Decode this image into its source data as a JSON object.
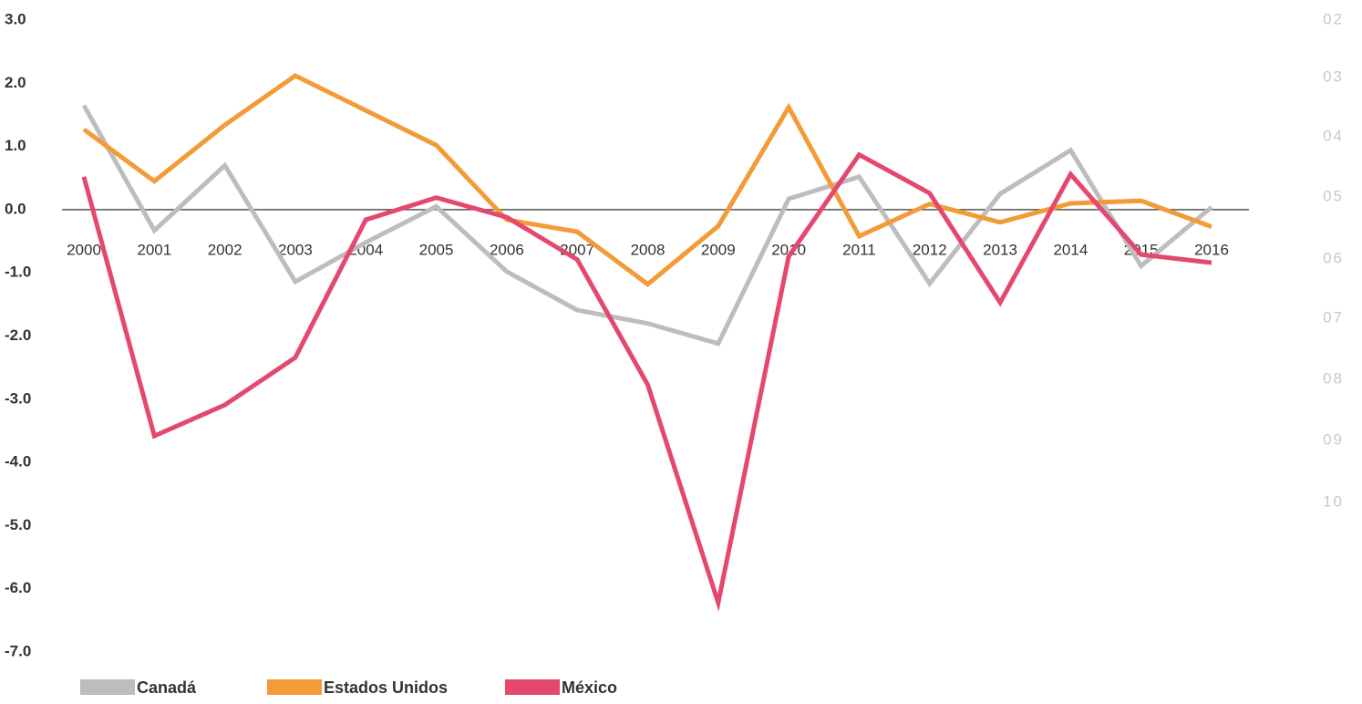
{
  "chart_data": {
    "type": "line",
    "categories": [
      "2000",
      "2001",
      "2002",
      "2003",
      "2004",
      "2005",
      "2006",
      "2007",
      "2008",
      "2009",
      "2010",
      "2011",
      "2012",
      "2013",
      "2014",
      "2015",
      "2016"
    ],
    "series": [
      {
        "name": "Canadá",
        "color": "#bdbdbd",
        "values": [
          1.65,
          -0.33,
          0.7,
          -1.14,
          -0.52,
          0.05,
          -0.98,
          -1.59,
          -1.8,
          -2.12,
          0.17,
          0.52,
          -1.17,
          0.25,
          0.94,
          -0.89,
          0.04
        ]
      },
      {
        "name": "Estados Unidos",
        "color": "#f39b38",
        "values": [
          1.27,
          0.45,
          1.34,
          2.12,
          1.57,
          1.02,
          -0.16,
          -0.35,
          -1.18,
          -0.26,
          1.62,
          -0.42,
          0.09,
          -0.2,
          0.1,
          0.14,
          -0.27
        ]
      },
      {
        "name": "México",
        "color": "#e5486e",
        "values": [
          0.52,
          -3.58,
          -3.09,
          -2.34,
          -0.16,
          0.19,
          -0.12,
          -0.79,
          -2.77,
          -6.22,
          -0.74,
          0.87,
          0.26,
          -1.47,
          0.56,
          -0.71,
          -0.84
        ]
      }
    ],
    "ylim": [
      -7,
      3
    ],
    "yticks": [
      {
        "value": 3,
        "label": "3.0"
      },
      {
        "value": 2,
        "label": "2.0"
      },
      {
        "value": 1,
        "label": "1.0"
      },
      {
        "value": 0,
        "label": "0.0"
      },
      {
        "value": -1,
        "label": "-1.0"
      },
      {
        "value": -2,
        "label": "-2.0"
      },
      {
        "value": -3,
        "label": "-3.0"
      },
      {
        "value": -4,
        "label": "-4.0"
      },
      {
        "value": -5,
        "label": "-5.0"
      },
      {
        "value": -6,
        "label": "-6.0"
      },
      {
        "value": -7,
        "label": "-7.0"
      }
    ],
    "zero_line": true,
    "side_labels": [
      "02",
      "03",
      "04",
      "05",
      "06",
      "07",
      "08",
      "09",
      "10"
    ]
  }
}
